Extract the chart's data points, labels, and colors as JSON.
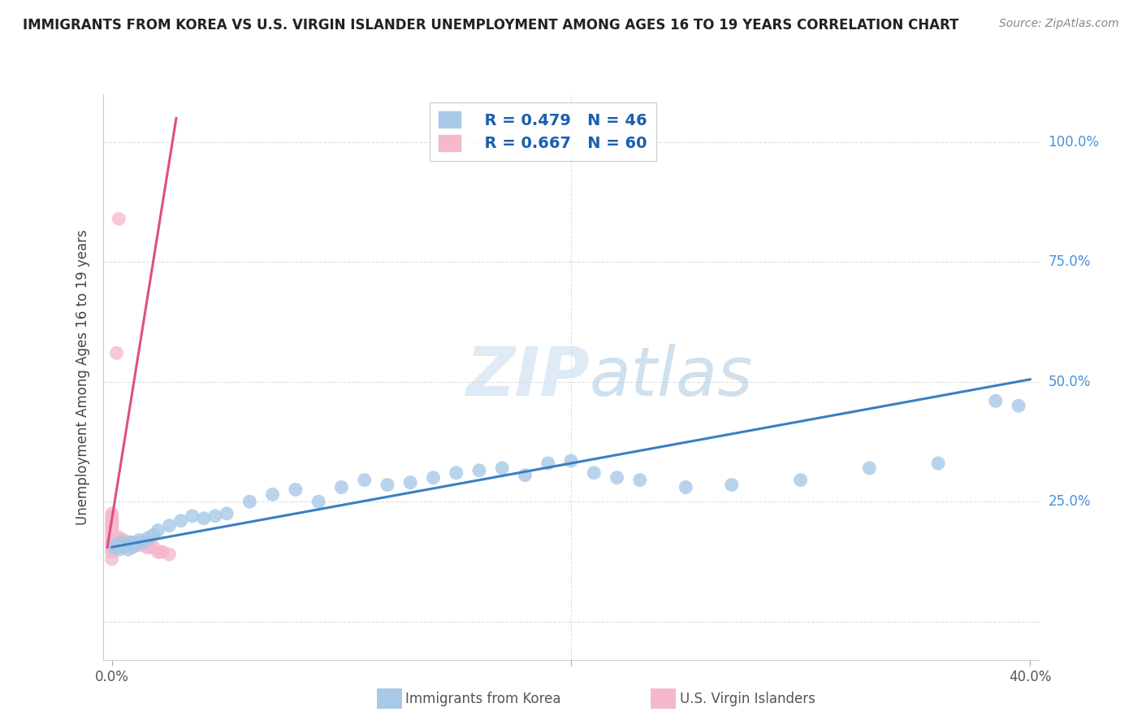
{
  "title": "IMMIGRANTS FROM KOREA VS U.S. VIRGIN ISLANDER UNEMPLOYMENT AMONG AGES 16 TO 19 YEARS CORRELATION CHART",
  "source": "Source: ZipAtlas.com",
  "ylabel": "Unemployment Among Ages 16 to 19 years",
  "xlim": [
    -0.004,
    0.404
  ],
  "ylim": [
    -0.08,
    1.1
  ],
  "xticks": [
    0.0,
    0.2,
    0.4
  ],
  "xtick_labels": [
    "0.0%",
    "",
    "40.0%"
  ],
  "yticks": [
    0.0,
    0.25,
    0.5,
    0.75,
    1.0
  ],
  "ytick_labels_right": [
    "",
    "25.0%",
    "50.0%",
    "75.0%",
    "100.0%"
  ],
  "blue_color": "#a8c8e8",
  "pink_color": "#f5b8cc",
  "blue_line_color": "#3a7fc1",
  "pink_line_color": "#e0507a",
  "legend_r1": "R = 0.479",
  "legend_n1": "N = 46",
  "legend_r2": "R = 0.667",
  "legend_n2": "N = 60",
  "label1": "Immigrants from Korea",
  "label2": "U.S. Virgin Islanders",
  "watermark_zip": "ZIP",
  "watermark_atlas": "atlas",
  "blue_trend_x": [
    0.0,
    0.4
  ],
  "blue_trend_y": [
    0.155,
    0.505
  ],
  "pink_trend_x": [
    -0.002,
    0.028
  ],
  "pink_trend_y": [
    0.155,
    1.05
  ],
  "blue_scatter_x": [
    0.001,
    0.002,
    0.003,
    0.004,
    0.005,
    0.006,
    0.007,
    0.008,
    0.009,
    0.01,
    0.012,
    0.014,
    0.016,
    0.018,
    0.02,
    0.025,
    0.03,
    0.035,
    0.04,
    0.045,
    0.05,
    0.06,
    0.07,
    0.08,
    0.09,
    0.1,
    0.11,
    0.12,
    0.13,
    0.14,
    0.15,
    0.16,
    0.17,
    0.18,
    0.19,
    0.2,
    0.21,
    0.22,
    0.23,
    0.25,
    0.27,
    0.3,
    0.33,
    0.36,
    0.385,
    0.395
  ],
  "blue_scatter_y": [
    0.155,
    0.16,
    0.15,
    0.165,
    0.155,
    0.16,
    0.15,
    0.165,
    0.155,
    0.16,
    0.17,
    0.165,
    0.175,
    0.18,
    0.19,
    0.2,
    0.21,
    0.22,
    0.215,
    0.22,
    0.225,
    0.25,
    0.265,
    0.275,
    0.25,
    0.28,
    0.295,
    0.285,
    0.29,
    0.3,
    0.31,
    0.315,
    0.32,
    0.305,
    0.33,
    0.335,
    0.31,
    0.3,
    0.295,
    0.28,
    0.285,
    0.295,
    0.32,
    0.33,
    0.46,
    0.45
  ],
  "pink_scatter_x": [
    0.0,
    0.0,
    0.0,
    0.0,
    0.0,
    0.0,
    0.0,
    0.0,
    0.0,
    0.0,
    0.0,
    0.0,
    0.0,
    0.0,
    0.0,
    0.0,
    0.0,
    0.0,
    0.0,
    0.0,
    0.001,
    0.001,
    0.001,
    0.001,
    0.001,
    0.002,
    0.002,
    0.002,
    0.002,
    0.003,
    0.003,
    0.003,
    0.004,
    0.004,
    0.005,
    0.005,
    0.005,
    0.006,
    0.006,
    0.007,
    0.007,
    0.008,
    0.008,
    0.009,
    0.01,
    0.01,
    0.011,
    0.012,
    0.013,
    0.014,
    0.015,
    0.016,
    0.017,
    0.018,
    0.02,
    0.021,
    0.022,
    0.025,
    0.002,
    0.003
  ],
  "pink_scatter_y": [
    0.13,
    0.145,
    0.15,
    0.155,
    0.16,
    0.165,
    0.17,
    0.175,
    0.18,
    0.185,
    0.19,
    0.195,
    0.2,
    0.205,
    0.21,
    0.215,
    0.22,
    0.225,
    0.155,
    0.165,
    0.155,
    0.16,
    0.165,
    0.17,
    0.175,
    0.16,
    0.165,
    0.17,
    0.175,
    0.165,
    0.17,
    0.175,
    0.165,
    0.17,
    0.16,
    0.165,
    0.17,
    0.16,
    0.165,
    0.16,
    0.165,
    0.16,
    0.165,
    0.16,
    0.16,
    0.165,
    0.16,
    0.16,
    0.16,
    0.16,
    0.155,
    0.155,
    0.155,
    0.155,
    0.145,
    0.145,
    0.145,
    0.14,
    0.56,
    0.84
  ],
  "grid_color": "#dddddd",
  "title_fontsize": 12,
  "source_fontsize": 10,
  "tick_color": "#4a90d9",
  "ylabel_color": "#444444"
}
